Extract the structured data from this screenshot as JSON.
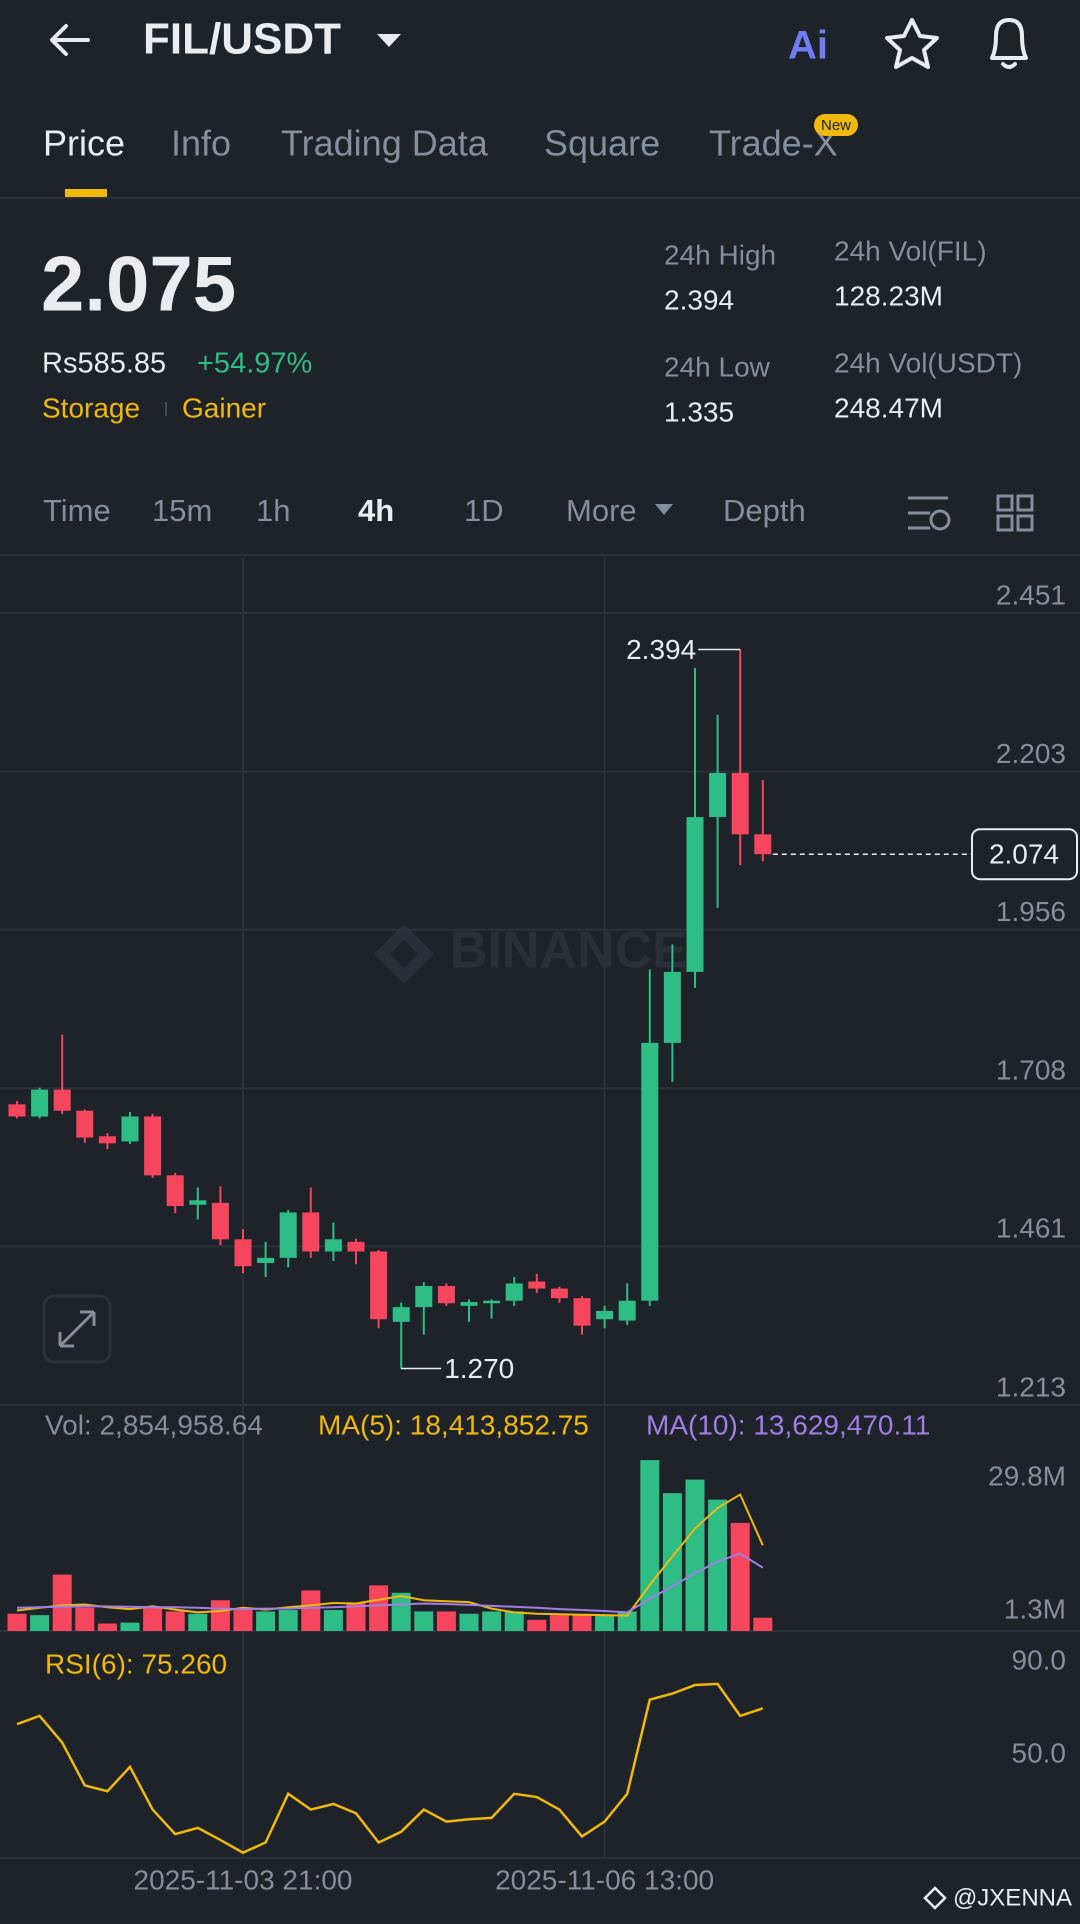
{
  "header": {
    "pair": "FIL/USDT"
  },
  "tabs": [
    "Price",
    "Info",
    "Trading Data",
    "Square",
    "Trade-X"
  ],
  "active_tab": 0,
  "new_badge": "New",
  "ticker": {
    "price": "2.075",
    "fiat": "Rs585.85",
    "change": "+54.97%",
    "tags": [
      "Storage",
      "Gainer"
    ],
    "stats": [
      {
        "label": "24h High",
        "value": "2.394"
      },
      {
        "label": "24h Vol(FIL)",
        "value": "128.23M"
      },
      {
        "label": "24h Low",
        "value": "1.335"
      },
      {
        "label": "24h Vol(USDT)",
        "value": "248.47M"
      }
    ]
  },
  "intervals": [
    "Time",
    "15m",
    "1h",
    "4h",
    "1D",
    "More",
    "Depth"
  ],
  "active_interval": 3,
  "credit": "@JXENNA",
  "chart_data": [
    {
      "type": "candlestick",
      "watermark": "BINANCE",
      "categories": [
        null,
        null,
        null,
        null,
        null,
        null,
        null,
        null,
        null,
        null,
        "2025-11-03 21:00",
        null,
        null,
        null,
        null,
        null,
        null,
        null,
        null,
        null,
        null,
        null,
        null,
        null,
        null,
        null,
        "2025-11-06 13:00",
        null,
        null,
        null,
        null,
        null,
        null,
        null
      ],
      "open": [
        1.683,
        1.664,
        1.706,
        1.673,
        1.633,
        1.625,
        1.664,
        1.572,
        1.526,
        1.529,
        1.472,
        1.435,
        1.443,
        1.514,
        1.453,
        1.468,
        1.453,
        1.343,
        1.366,
        1.399,
        1.368,
        1.372,
        1.376,
        1.406,
        1.395,
        1.38,
        1.347,
        1.345,
        1.376,
        1.779,
        1.89,
        2.132,
        2.201,
        2.105
      ],
      "high": [
        1.688,
        1.709,
        1.792,
        1.675,
        1.638,
        1.671,
        1.668,
        1.576,
        1.553,
        1.555,
        1.488,
        1.468,
        1.518,
        1.553,
        1.498,
        1.473,
        1.455,
        1.373,
        1.405,
        1.403,
        1.378,
        1.378,
        1.413,
        1.418,
        1.398,
        1.383,
        1.368,
        1.403,
        1.894,
        1.933,
        2.365,
        2.292,
        2.394,
        2.19
      ],
      "low": [
        1.661,
        1.661,
        1.668,
        1.623,
        1.613,
        1.621,
        1.568,
        1.513,
        1.503,
        1.463,
        1.419,
        1.413,
        1.428,
        1.443,
        1.438,
        1.433,
        1.333,
        1.27,
        1.323,
        1.368,
        1.343,
        1.348,
        1.368,
        1.388,
        1.373,
        1.323,
        1.333,
        1.338,
        1.368,
        1.718,
        1.865,
        1.99,
        2.057,
        2.063
      ],
      "close": [
        1.664,
        1.706,
        1.673,
        1.631,
        1.622,
        1.664,
        1.572,
        1.524,
        1.533,
        1.472,
        1.43,
        1.443,
        1.514,
        1.453,
        1.472,
        1.453,
        1.347,
        1.366,
        1.399,
        1.372,
        1.374,
        1.376,
        1.403,
        1.395,
        1.38,
        1.337,
        1.36,
        1.376,
        1.779,
        1.89,
        2.132,
        2.201,
        2.105,
        2.074
      ],
      "colors": {
        "up": "#2ebd85",
        "down": "#f6465d"
      },
      "ylim": [
        1.213,
        2.537
      ],
      "yticks": [
        1.213,
        1.461,
        1.708,
        1.956,
        2.203,
        2.451
      ],
      "grid": true,
      "high_label": 2.394,
      "low_label": {
        "value": 1.27,
        "label": "1.270"
      },
      "last_price": 2.074
    },
    {
      "type": "bar",
      "label": "Vol: 2,854,958.64",
      "values": [
        3.7,
        3.4,
        12.1,
        5.0,
        1.6,
        1.8,
        5.0,
        4.2,
        3.7,
        6.6,
        4.5,
        4.2,
        4.5,
        8.7,
        4.5,
        6.1,
        9.8,
        8.2,
        4.2,
        4.2,
        3.7,
        4.2,
        4.2,
        2.4,
        3.4,
        3.4,
        3.4,
        4.2,
        36.7,
        29.6,
        32.5,
        28.2,
        23.2,
        2.85
      ],
      "lines": [
        {
          "label": "MA(5): 18,413,852.75",
          "color": "#f0b90b",
          "values": [
            4.4,
            5,
            5.5,
            5.7,
            5.1,
            4.7,
            5.3,
            4.6,
            4,
            4.3,
            5,
            4.6,
            5.1,
            5.5,
            6,
            5.9,
            6.7,
            7.5,
            6.6,
            6.4,
            6.2,
            4.8,
            4,
            3.7,
            3.6,
            3.5,
            3.4,
            3.3,
            9.9,
            16,
            22,
            26.4,
            29.3,
            18.4
          ]
        },
        {
          "label": "MA(10): 13,629,470.11",
          "color": "#a07ee3",
          "values": [
            5,
            5.1,
            5.2,
            5.3,
            5.3,
            5.2,
            5.1,
            5.1,
            5,
            4.8,
            4.7,
            4.8,
            4.8,
            5,
            5.1,
            5.3,
            5.5,
            5.7,
            5.9,
            5.8,
            5.6,
            5.4,
            5.2,
            5,
            4.7,
            4.5,
            4.3,
            4,
            6.9,
            9.6,
            12.4,
            14.9,
            16.6,
            13.6
          ]
        }
      ],
      "ylim": [
        0,
        38
      ],
      "yticks": [
        {
          "value": 1.3,
          "label": "1.3M"
        },
        {
          "value": 29.8,
          "label": "29.8M"
        }
      ]
    },
    {
      "type": "line",
      "label": "RSI(6): 75.260",
      "color": "#f0b90b",
      "values": [
        68.4,
        72,
        60.5,
        42,
        39.5,
        50,
        31.6,
        21,
        23.7,
        18.5,
        13,
        17.4,
        38.4,
        31.6,
        34,
        30,
        17.4,
        22,
        31.6,
        26.4,
        27.4,
        28,
        38.4,
        37,
        31.6,
        20,
        26.4,
        38.4,
        79,
        81.6,
        85.3,
        85.8,
        72,
        75.26
      ],
      "ylim": [
        12,
        103
      ],
      "yticks": [
        {
          "value": 50,
          "label": "50.0"
        },
        {
          "value": 90,
          "label": "90.0"
        }
      ]
    }
  ]
}
